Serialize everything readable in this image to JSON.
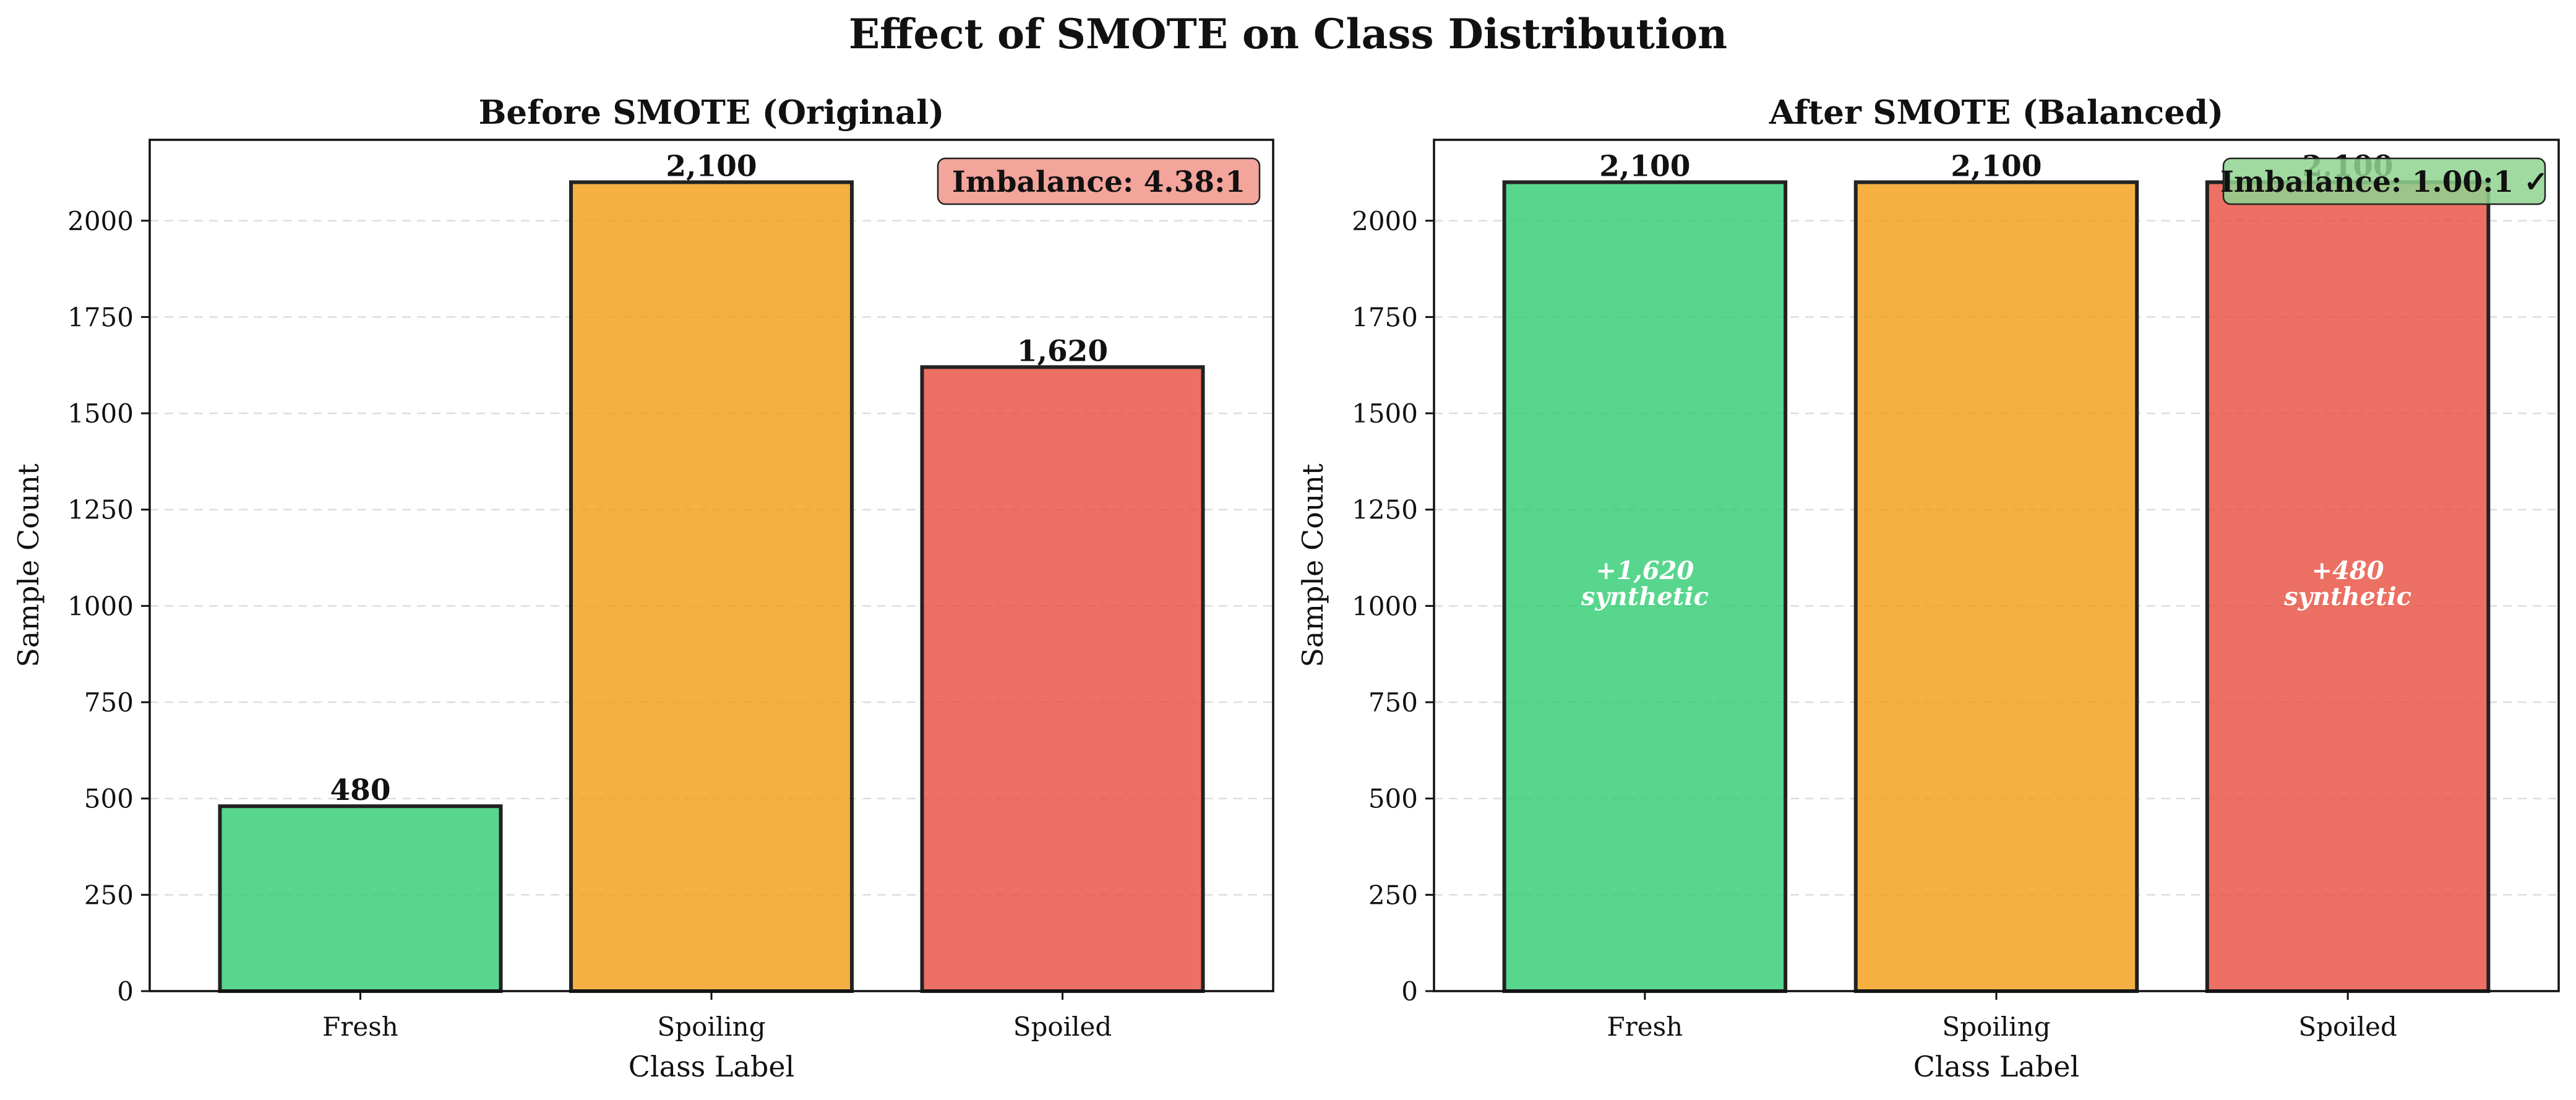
{
  "figure_title": "Effect of SMOTE on Class Distribution",
  "chart_data": [
    {
      "type": "bar",
      "title": "Before SMOTE (Original)",
      "xlabel": "Class Label",
      "ylabel": "Sample Count",
      "categories": [
        "Fresh",
        "Spoiling",
        "Spoiled"
      ],
      "values": [
        480,
        2100,
        1620
      ],
      "value_labels": [
        "480",
        "2,100",
        "1,620"
      ],
      "colors": [
        "#2ecc71",
        "#f39c12",
        "#e74c3c"
      ],
      "ylim": [
        0,
        2210
      ],
      "yticks": [
        0,
        250,
        500,
        750,
        1000,
        1250,
        1500,
        1750,
        2000
      ],
      "grid": "y, dashed",
      "synthetic_labels": [
        "",
        "",
        ""
      ],
      "badge": {
        "text": "Imbalance: 4.38:1",
        "color": "#f1948a",
        "placement": "top-right"
      }
    },
    {
      "type": "bar",
      "title": "After SMOTE (Balanced)",
      "xlabel": "Class Label",
      "ylabel": "Sample Count",
      "categories": [
        "Fresh",
        "Spoiling",
        "Spoiled"
      ],
      "values": [
        2100,
        2100,
        2100
      ],
      "value_labels": [
        "2,100",
        "2,100",
        "2,100"
      ],
      "colors": [
        "#2ecc71",
        "#f39c12",
        "#e74c3c"
      ],
      "ylim": [
        0,
        2210
      ],
      "yticks": [
        0,
        250,
        500,
        750,
        1000,
        1250,
        1500,
        1750,
        2000
      ],
      "grid": "y, dashed",
      "synthetic_labels": [
        "+1,620\nsynthetic",
        "",
        "+480\nsynthetic"
      ],
      "badge": {
        "text": "Imbalance: 1.00:1 ✓",
        "color": "#8fd48f",
        "placement": "top-right"
      }
    }
  ]
}
